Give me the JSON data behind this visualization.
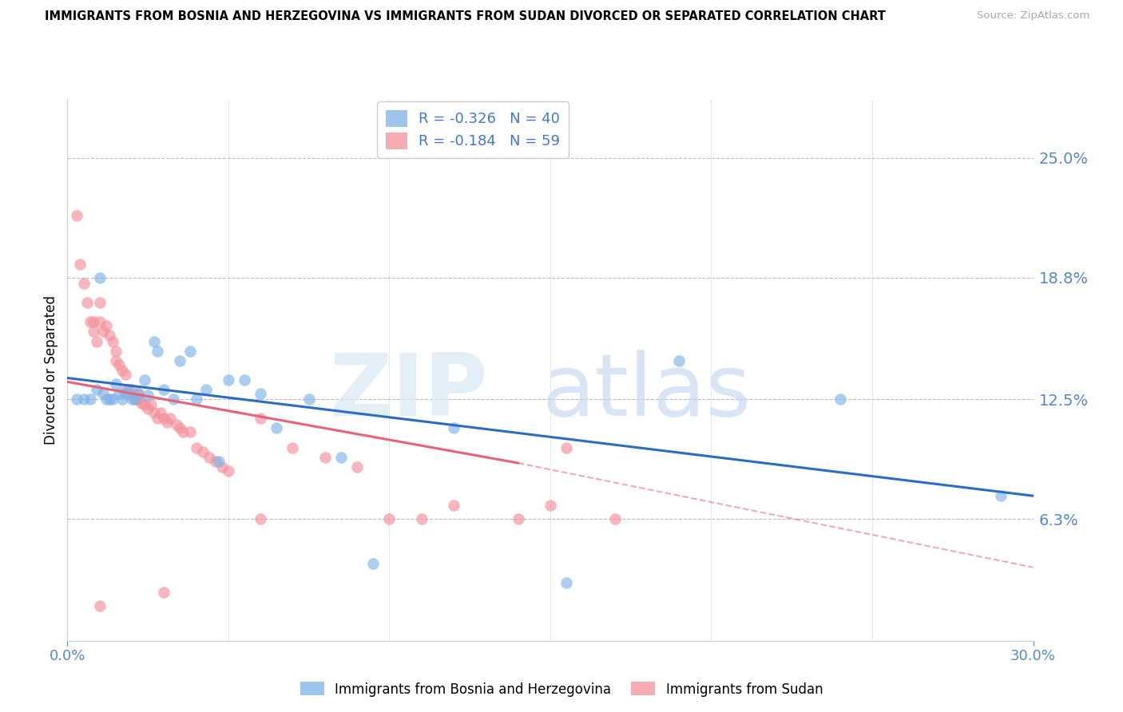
{
  "title": "IMMIGRANTS FROM BOSNIA AND HERZEGOVINA VS IMMIGRANTS FROM SUDAN DIVORCED OR SEPARATED CORRELATION CHART",
  "source": "Source: ZipAtlas.com",
  "ylabel": "Divorced or Separated",
  "xlim": [
    0.0,
    0.3
  ],
  "ylim": [
    0.0,
    0.28
  ],
  "ytick_labels": [
    "6.3%",
    "12.5%",
    "18.8%",
    "25.0%"
  ],
  "ytick_positions": [
    0.063,
    0.125,
    0.188,
    0.25
  ],
  "legend_r_blue": "R = -0.326",
  "legend_n_blue": "N = 40",
  "legend_r_pink": "R = -0.184",
  "legend_n_pink": "N = 59",
  "blue_color": "#7EB3E8",
  "pink_color": "#F4909A",
  "blue_line_color": "#2B6CC4",
  "pink_line_color": "#E8627A",
  "blue_line": [
    [
      0.0,
      0.136
    ],
    [
      0.3,
      0.075
    ]
  ],
  "pink_line_solid": [
    [
      0.0,
      0.134
    ],
    [
      0.14,
      0.092
    ]
  ],
  "pink_line_dash": [
    [
      0.14,
      0.092
    ],
    [
      0.3,
      0.038
    ]
  ],
  "blue_scatter_x": [
    0.003,
    0.005,
    0.007,
    0.009,
    0.01,
    0.011,
    0.012,
    0.013,
    0.014,
    0.015,
    0.016,
    0.017,
    0.018,
    0.019,
    0.02,
    0.021,
    0.022,
    0.024,
    0.025,
    0.027,
    0.028,
    0.03,
    0.033,
    0.035,
    0.038,
    0.04,
    0.043,
    0.047,
    0.05,
    0.055,
    0.06,
    0.065,
    0.075,
    0.085,
    0.095,
    0.12,
    0.155,
    0.19,
    0.24,
    0.29
  ],
  "blue_scatter_y": [
    0.125,
    0.125,
    0.125,
    0.13,
    0.188,
    0.128,
    0.125,
    0.125,
    0.125,
    0.133,
    0.128,
    0.125,
    0.128,
    0.13,
    0.125,
    0.125,
    0.128,
    0.135,
    0.127,
    0.155,
    0.15,
    0.13,
    0.125,
    0.145,
    0.15,
    0.125,
    0.13,
    0.093,
    0.135,
    0.135,
    0.128,
    0.11,
    0.125,
    0.095,
    0.04,
    0.11,
    0.03,
    0.145,
    0.125,
    0.075
  ],
  "pink_scatter_x": [
    0.003,
    0.004,
    0.005,
    0.006,
    0.007,
    0.008,
    0.008,
    0.009,
    0.01,
    0.01,
    0.011,
    0.012,
    0.013,
    0.014,
    0.015,
    0.015,
    0.016,
    0.017,
    0.018,
    0.018,
    0.019,
    0.02,
    0.021,
    0.022,
    0.022,
    0.023,
    0.024,
    0.025,
    0.026,
    0.027,
    0.028,
    0.029,
    0.03,
    0.031,
    0.032,
    0.034,
    0.035,
    0.036,
    0.038,
    0.04,
    0.042,
    0.044,
    0.046,
    0.048,
    0.05,
    0.06,
    0.07,
    0.08,
    0.09,
    0.1,
    0.11,
    0.12,
    0.14,
    0.155,
    0.17,
    0.01,
    0.03,
    0.06,
    0.15
  ],
  "pink_scatter_y": [
    0.22,
    0.195,
    0.185,
    0.175,
    0.165,
    0.165,
    0.16,
    0.155,
    0.175,
    0.165,
    0.16,
    0.163,
    0.158,
    0.155,
    0.15,
    0.145,
    0.143,
    0.14,
    0.138,
    0.13,
    0.128,
    0.13,
    0.125,
    0.128,
    0.125,
    0.123,
    0.122,
    0.12,
    0.122,
    0.118,
    0.115,
    0.118,
    0.115,
    0.113,
    0.115,
    0.112,
    0.11,
    0.108,
    0.108,
    0.1,
    0.098,
    0.095,
    0.093,
    0.09,
    0.088,
    0.115,
    0.1,
    0.095,
    0.09,
    0.063,
    0.063,
    0.07,
    0.063,
    0.1,
    0.063,
    0.018,
    0.025,
    0.063,
    0.07
  ]
}
